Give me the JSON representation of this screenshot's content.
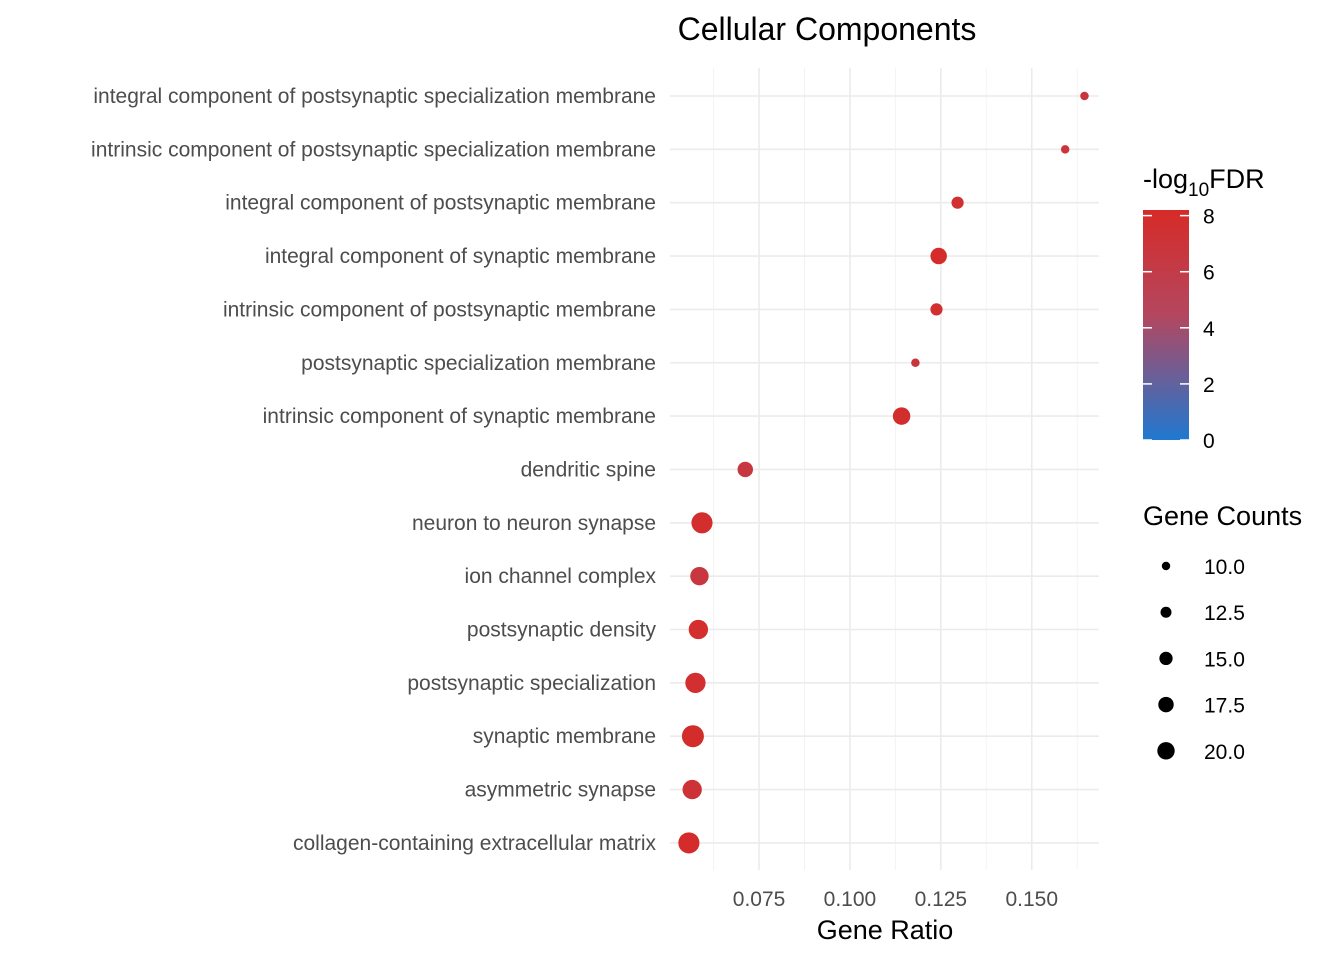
{
  "chart_data": {
    "type": "scatter",
    "title": "Cellular Components",
    "xlabel": "Gene Ratio",
    "ylabel": "",
    "xlim": [
      0.0505,
      0.1685
    ],
    "x_major_ticks": [
      0.075,
      0.1,
      0.125,
      0.15
    ],
    "x_tick_labels": [
      "0.075",
      "0.100",
      "0.125",
      "0.150"
    ],
    "x_minor_ticks": [
      0.0625,
      0.0875,
      0.1125,
      0.1375,
      0.1625
    ],
    "categories": [
      "integral component of postsynaptic specialization membrane",
      "intrinsic component of postsynaptic specialization membrane",
      "integral component of postsynaptic membrane",
      "integral component of synaptic membrane",
      "intrinsic component of postsynaptic membrane",
      "postsynaptic specialization membrane",
      "intrinsic component of synaptic membrane",
      "dendritic spine",
      "neuron to neuron synapse",
      "ion channel complex",
      "postsynaptic density",
      "postsynaptic specialization",
      "synaptic membrane",
      "asymmetric synapse",
      "collagen-containing extracellular matrix"
    ],
    "points": [
      {
        "term": "integral component of postsynaptic specialization membrane",
        "gene_ratio": 0.1645,
        "gene_count": 9,
        "neg_log10_fdr": 7.0
      },
      {
        "term": "intrinsic component of postsynaptic specialization membrane",
        "gene_ratio": 0.1592,
        "gene_count": 9,
        "neg_log10_fdr": 7.0
      },
      {
        "term": "integral component of postsynaptic membrane",
        "gene_ratio": 0.1296,
        "gene_count": 12,
        "neg_log10_fdr": 7.6
      },
      {
        "term": "integral component of synaptic membrane",
        "gene_ratio": 0.1244,
        "gene_count": 16,
        "neg_log10_fdr": 8.0
      },
      {
        "term": "intrinsic component of postsynaptic membrane",
        "gene_ratio": 0.1238,
        "gene_count": 12,
        "neg_log10_fdr": 7.6
      },
      {
        "term": "postsynaptic specialization membrane",
        "gene_ratio": 0.118,
        "gene_count": 9,
        "neg_log10_fdr": 6.8
      },
      {
        "term": "intrinsic component of synaptic membrane",
        "gene_ratio": 0.1142,
        "gene_count": 17,
        "neg_log10_fdr": 7.8
      },
      {
        "term": "dendritic spine",
        "gene_ratio": 0.0712,
        "gene_count": 15,
        "neg_log10_fdr": 6.5
      },
      {
        "term": "neuron to neuron synapse",
        "gene_ratio": 0.0593,
        "gene_count": 21,
        "neg_log10_fdr": 7.8
      },
      {
        "term": "ion channel complex",
        "gene_ratio": 0.0586,
        "gene_count": 18,
        "neg_log10_fdr": 6.6
      },
      {
        "term": "postsynaptic density",
        "gene_ratio": 0.0583,
        "gene_count": 19,
        "neg_log10_fdr": 7.7
      },
      {
        "term": "postsynaptic specialization",
        "gene_ratio": 0.0575,
        "gene_count": 20,
        "neg_log10_fdr": 7.6
      },
      {
        "term": "synaptic membrane",
        "gene_ratio": 0.0568,
        "gene_count": 22,
        "neg_log10_fdr": 7.9
      },
      {
        "term": "asymmetric synapse",
        "gene_ratio": 0.0566,
        "gene_count": 19,
        "neg_log10_fdr": 7.2
      },
      {
        "term": "collagen-containing extracellular matrix",
        "gene_ratio": 0.0557,
        "gene_count": 21,
        "neg_log10_fdr": 8.0
      }
    ],
    "color_legend": {
      "title_prefix": "-log",
      "title_subscript": "10",
      "title_suffix": "FDR",
      "min": 0,
      "max": 8.2,
      "ticks": [
        0,
        2,
        4,
        6,
        8
      ],
      "tick_labels": [
        "0",
        "2",
        "4",
        "6",
        "8"
      ],
      "low_color": "#1f78d1",
      "mid_color": "#b5465e",
      "high_color": "#d62b27"
    },
    "size_legend": {
      "title": "Gene Counts",
      "values": [
        10.0,
        12.5,
        15.0,
        17.5,
        20.0
      ],
      "labels": [
        "10.0",
        "12.5",
        "15.0",
        "17.5",
        "20.0"
      ],
      "color": "#000000"
    },
    "size_range": [
      8.5,
      22
    ]
  }
}
